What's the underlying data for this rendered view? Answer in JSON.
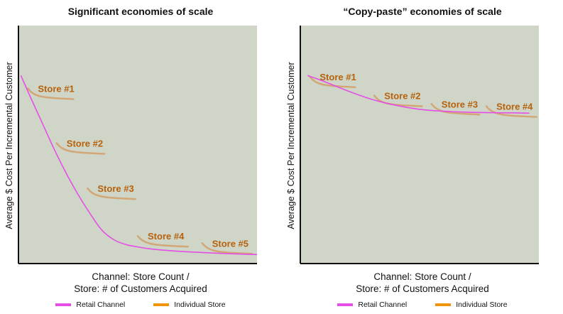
{
  "chart_data": [
    {
      "type": "line",
      "title": "Significant economies of scale",
      "xlabel_line1": "Channel: Store Count /",
      "xlabel_line2": "Store: # of Customers Acquired",
      "ylabel": "Average $ Cost Per Incremental Customer",
      "legend": [
        {
          "name": "Retail Channel",
          "color": "#e64ee6"
        },
        {
          "name": "Individual Store",
          "color": "#f0940a"
        }
      ],
      "legend_position": "bottom",
      "xlim": [
        0,
        100
      ],
      "ylim": [
        0,
        100
      ],
      "channel_curve": {
        "name": "Retail Channel",
        "x": [
          1,
          5,
          10,
          15,
          20,
          25,
          30,
          35,
          40,
          45,
          50,
          55,
          60,
          70,
          80,
          90,
          100
        ],
        "y": [
          79,
          70,
          59,
          48,
          38,
          29,
          21,
          14,
          10,
          8,
          7,
          6.2,
          5.7,
          5,
          4.5,
          4.1,
          3.8
        ]
      },
      "stores": [
        {
          "label": "Store #1",
          "x_start": 4,
          "x_end": 23,
          "y_level": 70
        },
        {
          "label": "Store #2",
          "x_start": 16,
          "x_end": 36,
          "y_level": 47
        },
        {
          "label": "Store #3",
          "x_start": 29,
          "x_end": 49,
          "y_level": 28
        },
        {
          "label": "Store #4",
          "x_start": 50,
          "x_end": 71,
          "y_level": 8
        },
        {
          "label": "Store #5",
          "x_start": 77,
          "x_end": 98,
          "y_level": 5
        }
      ]
    },
    {
      "type": "line",
      "title": "“Copy-paste” economies of scale",
      "xlabel_line1": "Channel: Store Count /",
      "xlabel_line2": "Store: # of Customers Acquired",
      "ylabel": "Average $ Cost Per Incremental Customer",
      "legend": [
        {
          "name": "Retail Channel",
          "color": "#e64ee6"
        },
        {
          "name": "Individual Store",
          "color": "#f0940a"
        }
      ],
      "legend_position": "bottom",
      "xlim": [
        0,
        100
      ],
      "ylim": [
        0,
        100
      ],
      "channel_curve": {
        "name": "Retail Channel",
        "x": [
          3,
          10,
          20,
          30,
          40,
          50,
          60,
          70,
          80,
          90,
          96
        ],
        "y": [
          79,
          76.5,
          72.5,
          69,
          66.5,
          64.8,
          64,
          63.6,
          63.4,
          63.3,
          63.2
        ]
      },
      "stores": [
        {
          "label": "Store #1",
          "x_start": 4,
          "x_end": 23,
          "y_level": 75
        },
        {
          "label": "Store #2",
          "x_start": 31,
          "x_end": 51,
          "y_level": 67
        },
        {
          "label": "Store #3",
          "x_start": 55,
          "x_end": 75,
          "y_level": 63.5
        },
        {
          "label": "Store #4",
          "x_start": 78,
          "x_end": 99,
          "y_level": 62.5
        }
      ]
    }
  ],
  "colors": {
    "plot_background": "#cfd6c8",
    "axis": "#111111",
    "retail_channel": "#e64ee6",
    "individual_store": "#d2a675",
    "store_label": "#b7610c"
  }
}
